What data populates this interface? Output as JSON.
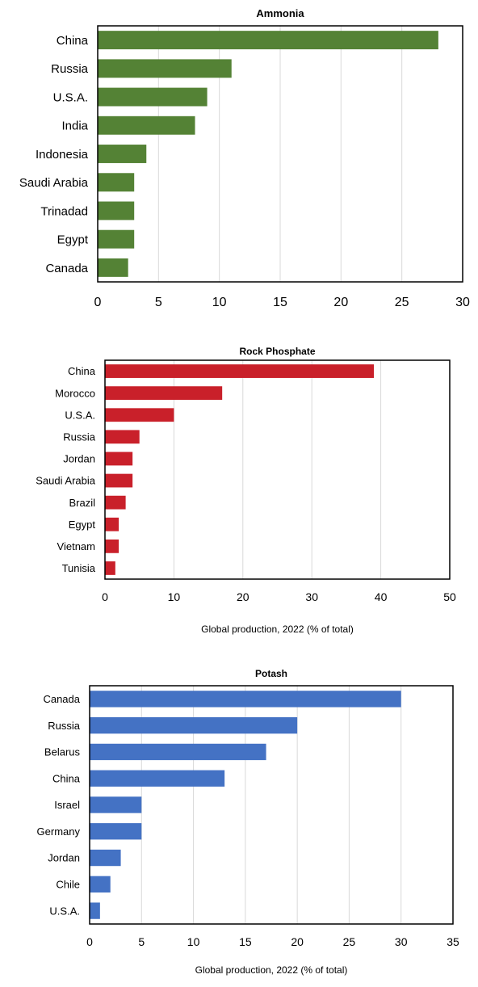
{
  "chart_data": [
    {
      "type": "bar",
      "orientation": "horizontal",
      "title": "Ammonia",
      "categories": [
        "China",
        "Russia",
        "U.S.A.",
        "India",
        "Indonesia",
        "Saudi Arabia",
        "Trinadad",
        "Egypt",
        "Canada"
      ],
      "values": [
        28,
        11,
        9,
        8,
        4,
        3,
        3,
        3,
        2.5
      ],
      "xlabel": "",
      "xlim": [
        0,
        30
      ],
      "xticks": [
        0,
        5,
        10,
        15,
        20,
        25,
        30
      ],
      "grid": true,
      "color": "#548235"
    },
    {
      "type": "bar",
      "orientation": "horizontal",
      "title": "Rock Phosphate",
      "categories": [
        "China",
        "Morocco",
        "U.S.A.",
        "Russia",
        "Jordan",
        "Saudi Arabia",
        "Brazil",
        "Egypt",
        "Vietnam",
        "Tunisia"
      ],
      "values": [
        39,
        17,
        10,
        5,
        4,
        4,
        3,
        2,
        2,
        1.5
      ],
      "xlabel": "Global production, 2022 (% of total)",
      "xlim": [
        0,
        50
      ],
      "xticks": [
        0,
        10,
        20,
        30,
        40,
        50
      ],
      "grid": true,
      "color": "#C9202A"
    },
    {
      "type": "bar",
      "orientation": "horizontal",
      "title": "Potash",
      "categories": [
        "Canada",
        "Russia",
        "Belarus",
        "China",
        "Israel",
        "Germany",
        "Jordan",
        "Chile",
        "U.S.A."
      ],
      "values": [
        30,
        20,
        17,
        13,
        5,
        5,
        3,
        2,
        1
      ],
      "xlabel": "Global production, 2022 (% of total)",
      "xlim": [
        0,
        35
      ],
      "xticks": [
        0,
        5,
        10,
        15,
        20,
        25,
        30,
        35
      ],
      "grid": true,
      "color": "#4472C4"
    }
  ]
}
